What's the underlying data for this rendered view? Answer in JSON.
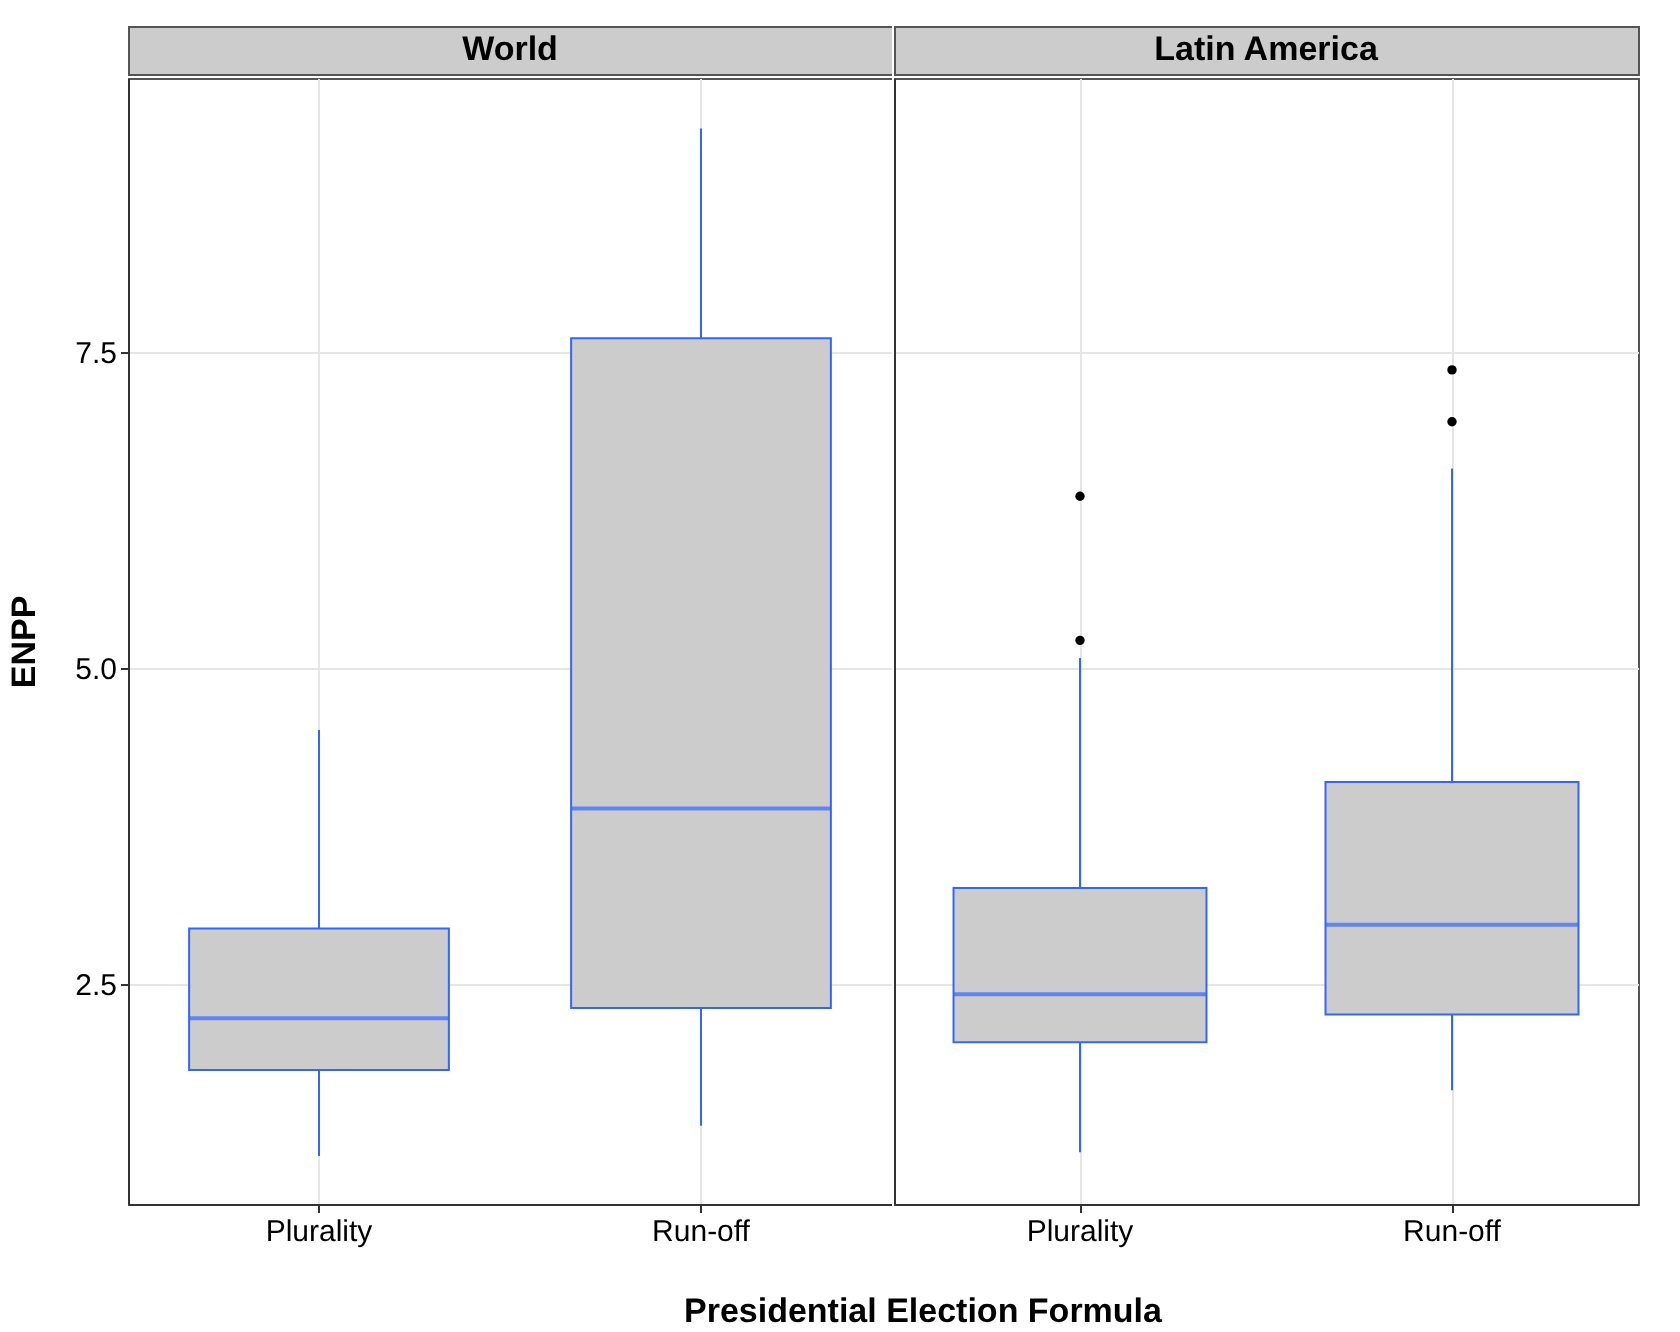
{
  "chart_data": [
    {
      "type": "box",
      "title": "World",
      "ylabel": "ENPP",
      "xlabel": "Presidential Election Formula",
      "categories": [
        "Plurality",
        "Run-off"
      ],
      "ylim": [
        0.76,
        9.67
      ],
      "yticks": [
        2.5,
        {
          "value": 5,
          "label": "5.0"
        },
        7.5
      ],
      "grid": true,
      "series": [
        {
          "color": "#3366ff",
          "boxes": [
            {
              "low": 1.14,
              "q1": 1.82,
              "median": 2.23,
              "q3": 2.94,
              "high": 4.51
            },
            {
              "low": 1.38,
              "q1": 2.31,
              "median": 3.89,
              "q3": 7.61,
              "high": 9.27
            }
          ]
        }
      ]
    },
    {
      "type": "box",
      "title": "Latin America",
      "categories": [
        "Plurality",
        "Run-off"
      ],
      "ylim": [
        0.76,
        9.67
      ],
      "yticks": [
        2.5,
        5,
        7.5
      ],
      "grid": true,
      "tick_labels": "x",
      "series": [
        {
          "color": "#3366ff",
          "boxes": [
            {
              "low": 1.17,
              "q1": 2.04,
              "median": 2.42,
              "q3": 3.26,
              "high": 5.08,
              "outliers": [
                5.22,
                6.36
              ]
            },
            {
              "low": 1.66,
              "q1": 2.26,
              "median": 2.97,
              "q3": 4.1,
              "high": 6.58,
              "outliers": [
                6.95,
                7.36
              ]
            }
          ]
        }
      ]
    }
  ]
}
